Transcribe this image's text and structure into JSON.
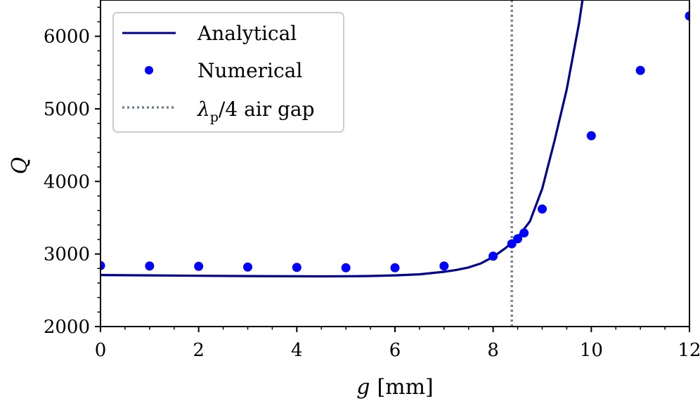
{
  "chart_data": {
    "type": "line",
    "title": "",
    "xlabel_var": "g",
    "xlabel_unit": "[mm]",
    "ylabel": "Q",
    "xlim": [
      0,
      12
    ],
    "ylim": [
      2000,
      6500
    ],
    "xticks": [
      0,
      2,
      4,
      6,
      8,
      10,
      12
    ],
    "yticks": [
      2000,
      3000,
      4000,
      5000,
      6000
    ],
    "grid": false,
    "legend_position": "upper left",
    "colors": {
      "analytical": "#00008b",
      "numerical": "#0000ff",
      "air_gap": "#708090"
    },
    "series": [
      {
        "name": "Analytical",
        "kind": "line",
        "x": [
          0,
          1,
          2,
          3,
          4,
          4.5,
          5,
          5.5,
          6,
          6.5,
          7,
          7.25,
          7.5,
          7.75,
          8,
          8.25,
          8.5,
          8.75,
          9,
          9.25,
          9.5,
          9.75,
          9.82
        ],
        "y": [
          2710,
          2705,
          2700,
          2696,
          2693,
          2692,
          2693,
          2697,
          2705,
          2720,
          2755,
          2780,
          2815,
          2870,
          2960,
          3080,
          3230,
          3450,
          3900,
          4560,
          5270,
          6180,
          6500
        ]
      },
      {
        "name": "Numerical",
        "kind": "scatter",
        "x": [
          0,
          1,
          2,
          3,
          4,
          5,
          6,
          7,
          8,
          8.38,
          8.5,
          8.63,
          9,
          10,
          11,
          12
        ],
        "y": [
          2840,
          2835,
          2830,
          2820,
          2815,
          2810,
          2810,
          2835,
          2970,
          3140,
          3210,
          3290,
          3620,
          4630,
          5530,
          6280
        ]
      },
      {
        "name": "λp/4 air gap",
        "legend_parts": {
          "symbol": "λ",
          "subscript": "p",
          "rest": "/4 air gap"
        },
        "kind": "vline",
        "x": 8.38
      }
    ]
  }
}
